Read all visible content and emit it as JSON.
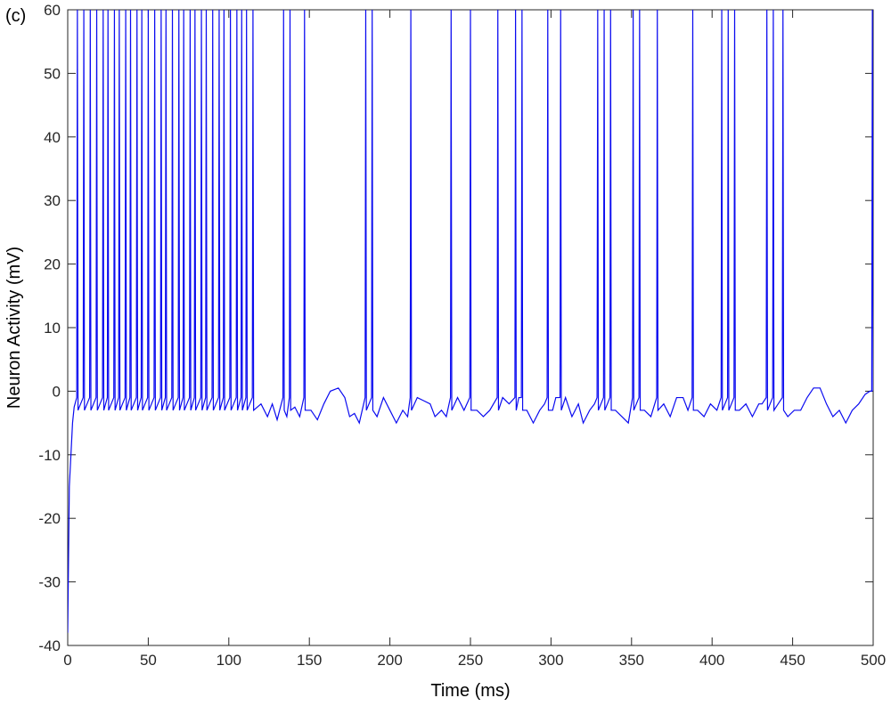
{
  "chart_data": {
    "type": "line",
    "annotation": "(c)",
    "xlabel": "Time (ms)",
    "ylabel": "Neuron Activity (mV)",
    "color": "#0a0af0",
    "xlim": [
      0,
      500
    ],
    "xticks": [
      0,
      50,
      100,
      150,
      200,
      250,
      300,
      350,
      400,
      450,
      500
    ],
    "ylim": [
      -40,
      60
    ],
    "yticks": [
      -40,
      -30,
      -20,
      -10,
      0,
      10,
      20,
      30,
      40,
      50,
      60
    ],
    "grid": false,
    "x": [
      0,
      1,
      3,
      4,
      5.6,
      6,
      6.4,
      9.6,
      10,
      10.4,
      13.6,
      14,
      14.4,
      17.6,
      18,
      18.4,
      21.6,
      22,
      22.4,
      24.6,
      25,
      25.4,
      28.6,
      29,
      29.4,
      31.6,
      32,
      32.4,
      35.6,
      36,
      36.4,
      38.6,
      39,
      39.4,
      42.6,
      43,
      43.4,
      45.6,
      46,
      46.4,
      49.6,
      50,
      50.4,
      53.6,
      54,
      54.4,
      57.6,
      58,
      58.4,
      60.6,
      61,
      61.4,
      64.6,
      65,
      65.4,
      68.6,
      69,
      69.4,
      71.6,
      72,
      72.4,
      75.6,
      76,
      76.4,
      78.6,
      79,
      79.4,
      82.6,
      83,
      83.4,
      85.6,
      86,
      86.4,
      89.6,
      90,
      90.4,
      93.6,
      94,
      94.4,
      96.6,
      97,
      97.4,
      100.6,
      101,
      101.4,
      104.6,
      105,
      105.4,
      107.6,
      108,
      108.4,
      110.6,
      111,
      111.4,
      114.6,
      115,
      115.4,
      120,
      124,
      127,
      130,
      133.6,
      134,
      134.4,
      136,
      137.6,
      138,
      138.4,
      141,
      144,
      146.6,
      147,
      147.4,
      151,
      155,
      159,
      163,
      168,
      172,
      175,
      178,
      181,
      184.6,
      185,
      185.4,
      187,
      188.6,
      189,
      189.4,
      192,
      196,
      200,
      204,
      208,
      211,
      212.6,
      213,
      213.4,
      217,
      221,
      225,
      228,
      232,
      235,
      237.6,
      238,
      238.4,
      242,
      246,
      249.6,
      250,
      250.4,
      254,
      258,
      262,
      266.6,
      267,
      267.4,
      270,
      274,
      277.6,
      278,
      278.4,
      280,
      281.6,
      282,
      282.4,
      285,
      289,
      293,
      296,
      297.6,
      298,
      298.4,
      301,
      303,
      305.6,
      306,
      306.4,
      309,
      313,
      317,
      320,
      324,
      327,
      328.6,
      329,
      329.4,
      332.6,
      333,
      333.4,
      336.6,
      337,
      337.4,
      340,
      344,
      348,
      350.6,
      351,
      351.4,
      354.6,
      355,
      355.4,
      358,
      362,
      365.6,
      366,
      366.4,
      370,
      374,
      378,
      382,
      385,
      387.6,
      388,
      388.4,
      391,
      395,
      399,
      403,
      405.6,
      406,
      406.4,
      409.6,
      410,
      410.4,
      413.6,
      414,
      414.4,
      417,
      421,
      425,
      429,
      431,
      433.6,
      434,
      434.4,
      437.6,
      438,
      438.4,
      441,
      443.6,
      444,
      444.4,
      447,
      451,
      455,
      459,
      463,
      467,
      471,
      475,
      479,
      483,
      487,
      491,
      495,
      498,
      499.1,
      499.5,
      500
    ],
    "values": [
      -38,
      -15,
      -5,
      -2.5,
      -1,
      60,
      -3,
      -1,
      60,
      -3,
      -1,
      60,
      -3,
      -1,
      60,
      -3,
      -1,
      60,
      -3,
      -1,
      60,
      -3,
      -1,
      60,
      -3,
      -1,
      60,
      -3,
      -1,
      60,
      -3,
      -1,
      60,
      -3,
      -1,
      60,
      -3,
      -1,
      60,
      -3,
      -1,
      60,
      -3,
      -1,
      60,
      -3,
      -1,
      60,
      -3,
      -1,
      60,
      -3,
      -1,
      60,
      -3,
      -1,
      60,
      -3,
      -1,
      60,
      -3,
      -1,
      60,
      -3,
      -1,
      60,
      -3,
      -1,
      60,
      -3,
      -1,
      60,
      -3,
      -1,
      60,
      -3,
      -1,
      60,
      -3,
      -1,
      60,
      -3,
      -1,
      60,
      -3,
      -1,
      60,
      -3,
      -1,
      60,
      -3,
      -1,
      60,
      -3,
      -1,
      60,
      -3,
      -2,
      -4,
      -2,
      -4.5,
      -1,
      60,
      -3,
      -4,
      -1,
      60,
      -3,
      -2.5,
      -4,
      -1,
      60,
      -3,
      -3,
      -4.5,
      -2,
      0,
      0.5,
      -1,
      -4,
      -3.5,
      -5,
      -1,
      60,
      -3,
      -2,
      -1,
      60,
      -3,
      -4,
      -1,
      -3,
      -5,
      -3,
      -4,
      -1,
      60,
      -3,
      -1,
      -1.5,
      -2,
      -4,
      -3,
      -4,
      -1,
      60,
      -3,
      -1,
      -3,
      -1,
      60,
      -3,
      -3,
      -4,
      -3,
      -1,
      60,
      -3,
      -1,
      -2,
      -1,
      60,
      -3,
      -1,
      -1,
      60,
      -3,
      -3,
      -5,
      -3,
      -2,
      -1,
      60,
      -3,
      -3,
      -1,
      -1,
      60,
      -3,
      -1,
      -4,
      -2,
      -5,
      -3,
      -2,
      -1,
      60,
      -3,
      -1,
      60,
      -3,
      -1,
      60,
      -3,
      -3,
      -4,
      -5,
      -1,
      60,
      -3,
      -1,
      60,
      -3,
      -3,
      -4,
      -1,
      60,
      -3,
      -2,
      -4,
      -1,
      -1,
      -3,
      -1,
      60,
      -3,
      -3,
      -4,
      -2,
      -3,
      -1,
      60,
      -3,
      -1,
      60,
      -3,
      -1,
      60,
      -3,
      -3,
      -2,
      -4,
      -2,
      -2,
      -1,
      60,
      -3,
      -1,
      60,
      -3,
      -2,
      -1,
      60,
      -3,
      -4,
      -3,
      -3,
      -1,
      0.5,
      0.5,
      -2,
      -4,
      -3,
      -5,
      -3,
      -2,
      -0.5,
      0,
      0,
      60,
      0
    ]
  }
}
